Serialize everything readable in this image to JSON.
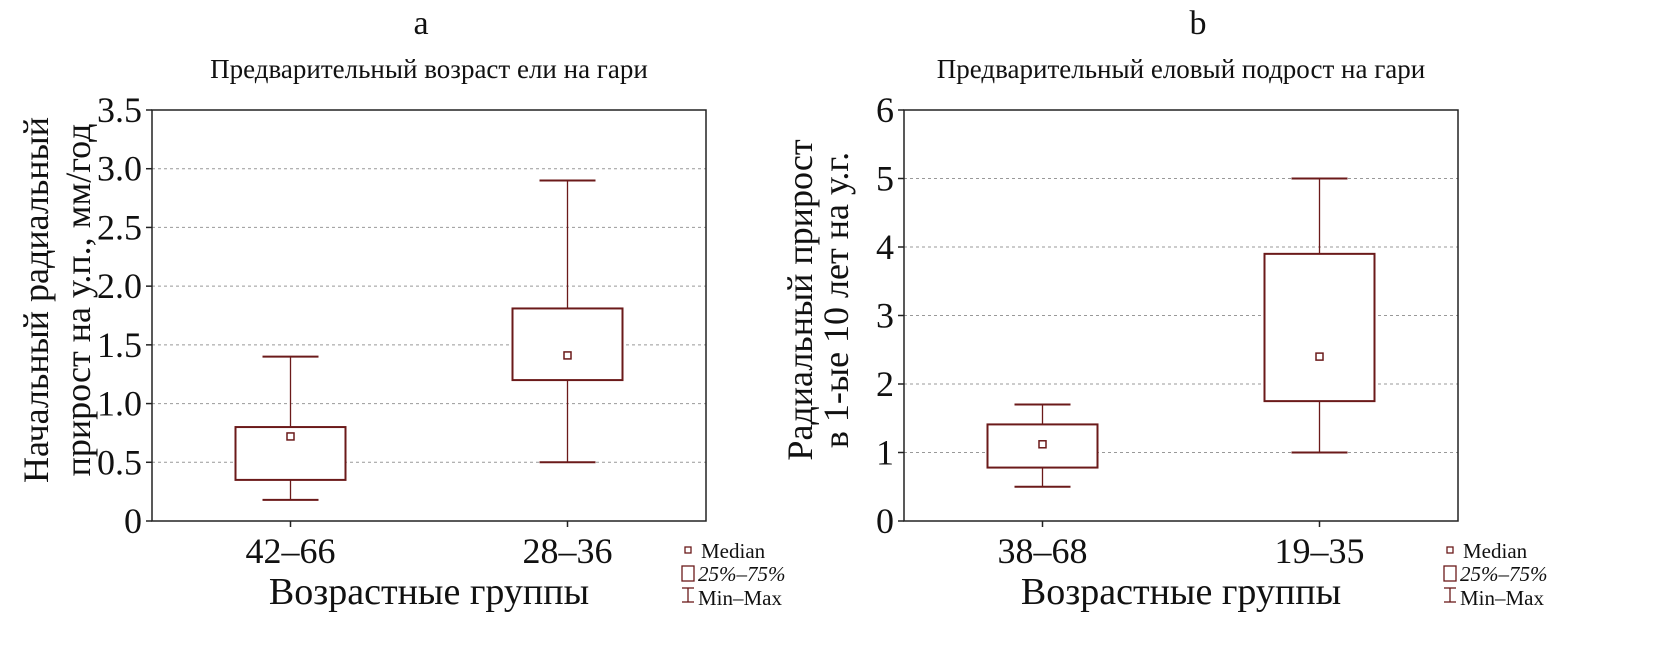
{
  "colors": {
    "box": "#6b1a1a",
    "grid": "#999999",
    "axis": "#222222",
    "text": "#111111"
  },
  "legend": {
    "median": "Median",
    "box": "25%–75%",
    "whisker": "Min–Max"
  },
  "chart_data": [
    {
      "type": "box",
      "panel_letter": "a",
      "title": "Предварительный возраст ели на гари",
      "xlabel": "Возрастные группы",
      "ylabel": [
        "Начальный радиальный",
        "прирост на у.п., мм/год"
      ],
      "ylim": [
        0,
        3.5
      ],
      "yticks": [
        0,
        0.5,
        1.0,
        1.5,
        2.0,
        2.5,
        3.0,
        3.5
      ],
      "ytick_labels": [
        "0",
        "0.5",
        "1.0",
        "1.5",
        "2.0",
        "2.5",
        "3.0",
        "3.5"
      ],
      "grid": true,
      "categories": [
        "42–66",
        "28–36"
      ],
      "boxes": [
        {
          "min": 0.18,
          "q1": 0.35,
          "median": 0.72,
          "q3": 0.8,
          "max": 1.4
        },
        {
          "min": 0.5,
          "q1": 1.2,
          "median": 1.41,
          "q3": 1.81,
          "max": 2.9
        }
      ]
    },
    {
      "type": "box",
      "panel_letter": "b",
      "title": "Предварительный еловый подрост на гари",
      "xlabel": "Возрастные группы",
      "ylabel": [
        "Радиальный прирост",
        "в 1-ые 10 лет на у.г."
      ],
      "ylim": [
        0,
        6
      ],
      "yticks": [
        0,
        1,
        2,
        3,
        4,
        5,
        6
      ],
      "ytick_labels": [
        "0",
        "1",
        "2",
        "3",
        "4",
        "5",
        "6"
      ],
      "grid": true,
      "categories": [
        "38–68",
        "19–35"
      ],
      "boxes": [
        {
          "min": 0.5,
          "q1": 0.78,
          "median": 1.12,
          "q3": 1.41,
          "max": 1.7
        },
        {
          "min": 1.0,
          "q1": 1.75,
          "median": 2.4,
          "q3": 3.9,
          "max": 5.0
        }
      ]
    }
  ]
}
